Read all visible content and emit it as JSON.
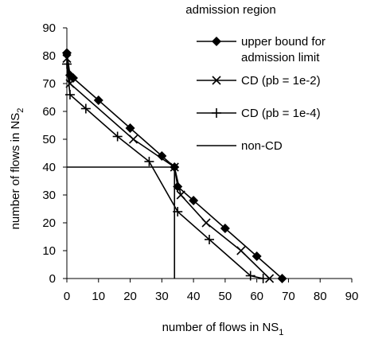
{
  "chart_data": {
    "type": "line",
    "title": "admission region",
    "xlabel": {
      "text": "number of flows in NS",
      "sub": "1"
    },
    "ylabel": {
      "text": "number of flows in NS",
      "sub": "2"
    },
    "xlim": [
      0,
      90
    ],
    "ylim": [
      0,
      90
    ],
    "xticks": [
      0,
      10,
      20,
      30,
      40,
      50,
      60,
      70,
      80,
      90
    ],
    "yticks": [
      0,
      10,
      20,
      30,
      40,
      50,
      60,
      70,
      80,
      90
    ],
    "grid": false,
    "legend_position": "top-right",
    "series": [
      {
        "name": "upper bound for admission limit",
        "marker": "diamond",
        "color": "#000000",
        "x": [
          0,
          1,
          2,
          10,
          20,
          30,
          34,
          35,
          40,
          50,
          60,
          68
        ],
        "y": [
          81,
          73,
          72,
          64,
          54,
          44,
          40,
          33,
          28,
          18,
          8,
          0
        ]
      },
      {
        "name": "CD (pb = 1e-2)",
        "marker": "x",
        "color": "#000000",
        "x": [
          0,
          1,
          21,
          34,
          36,
          44,
          55,
          64
        ],
        "y": [
          79,
          70,
          50,
          40,
          30,
          20,
          10,
          0
        ]
      },
      {
        "name": "CD (pb = 1e-4)",
        "marker": "plus",
        "color": "#000000",
        "x": [
          0,
          1,
          6,
          16,
          26,
          35,
          45,
          58,
          62
        ],
        "y": [
          77,
          66,
          61,
          51,
          42,
          24,
          14,
          1,
          0
        ]
      },
      {
        "name": "non-CD",
        "marker": "none",
        "color": "#000000",
        "x": [
          0,
          34,
          34
        ],
        "y": [
          40,
          40,
          0
        ]
      }
    ]
  }
}
